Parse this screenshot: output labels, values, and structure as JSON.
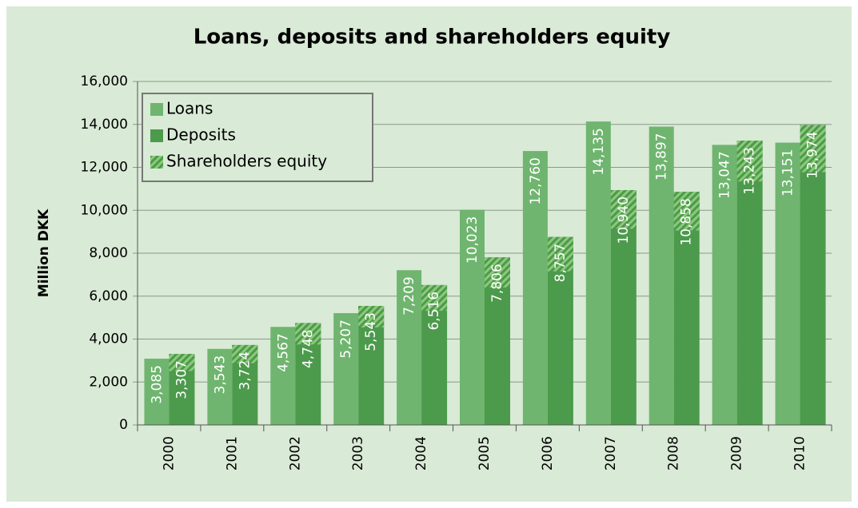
{
  "chart_data": {
    "type": "bar",
    "title": "Loans, deposits and shareholders equity",
    "y_label": "Million DKK",
    "categories": [
      "2000",
      "2001",
      "2002",
      "2003",
      "2004",
      "2005",
      "2006",
      "2007",
      "2008",
      "2009",
      "2010"
    ],
    "series": [
      {
        "name": "Loans",
        "color": "#6fb56f",
        "values": [
          3085,
          3543,
          4567,
          5207,
          7209,
          10023,
          12760,
          14135,
          13897,
          13047,
          13151
        ],
        "value_labels": [
          "3,085",
          "3,543",
          "4,567",
          "5,207",
          "7,209",
          "10,023",
          "12,760",
          "14,135",
          "13,897",
          "13,047",
          "13,151"
        ]
      },
      {
        "name": "Deposits",
        "color": "#4c9a4c",
        "values": [
          3307,
          3724,
          4748,
          5543,
          6516,
          7806,
          8757,
          10940,
          10858,
          13243,
          13974
        ],
        "value_labels": [
          "3,307",
          "3,724",
          "4,748",
          "5,543",
          "6,516",
          "7,806",
          "8,757",
          "10,940",
          "10,858",
          "13,243",
          "13,974"
        ]
      },
      {
        "name": "Shareholders equity",
        "color": "#7cbf6a",
        "hatched": true,
        "values": [
          800,
          850,
          1000,
          1000,
          1200,
          1400,
          1600,
          1800,
          1800,
          1900,
          2200
        ]
      }
    ],
    "ylim": [
      0,
      16000
    ],
    "yticks": [
      0,
      {
        "value": 2000,
        "label": "2,000"
      },
      {
        "value": 4000,
        "label": "4,000"
      },
      {
        "value": 6000,
        "label": "6,000"
      },
      {
        "value": 8000,
        "label": "8,000"
      },
      {
        "value": 10000,
        "label": "10,000"
      },
      {
        "value": 12000,
        "label": "12,000"
      },
      {
        "value": 14000,
        "label": "14,000"
      },
      {
        "value": 16000,
        "label": "16,000"
      }
    ],
    "grid": true,
    "legend": "top-left"
  }
}
